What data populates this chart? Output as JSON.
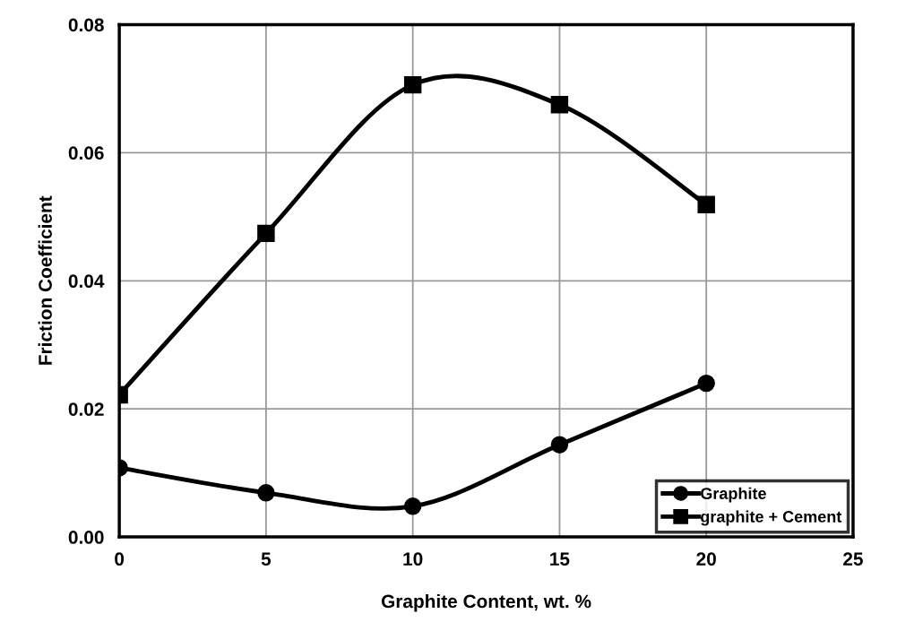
{
  "chart_data": {
    "type": "line",
    "xlabel": "Graphite Content, wt. %",
    "ylabel": "Friction Coefficient",
    "x": [
      0,
      5,
      10,
      15,
      20
    ],
    "series": [
      {
        "name": "Graphite",
        "color": "#000000",
        "marker": "circle",
        "values": [
          0.0108,
          0.0069,
          0.0048,
          0.0144,
          0.024
        ]
      },
      {
        "name": "graphite + Cement",
        "color": "#000000",
        "marker": "square",
        "values": [
          0.0222,
          0.0474,
          0.0706,
          0.0675,
          0.0519
        ]
      }
    ],
    "xlim": [
      0,
      25
    ],
    "xticks": [
      0,
      5,
      10,
      15,
      20,
      25
    ],
    "ylim": [
      0,
      0.08
    ],
    "yticks": [
      {
        "value": 0,
        "label": "0.00"
      },
      {
        "value": 0.02,
        "label": "0.02"
      },
      {
        "value": 0.04,
        "label": "0.04"
      },
      {
        "value": 0.06,
        "label": "0.06"
      },
      {
        "value": 0.08,
        "label": "0.08"
      }
    ],
    "grid": true,
    "legend": "bottom right",
    "line_style": "solid"
  }
}
